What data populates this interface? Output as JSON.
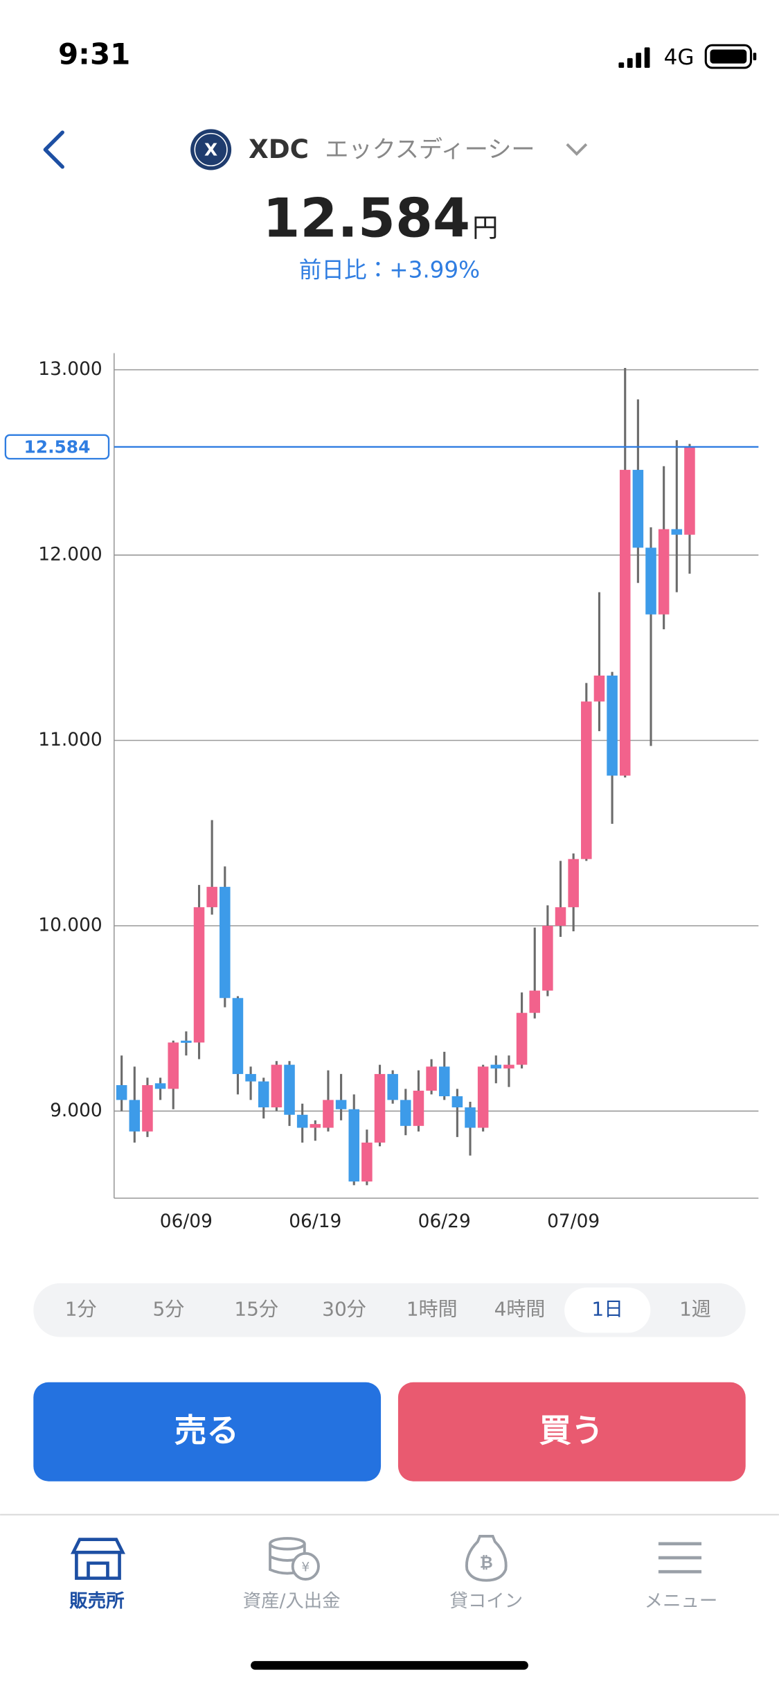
{
  "status_bar": {
    "time": "9:31",
    "network": "4G"
  },
  "header": {
    "symbol": "XDC",
    "name": "エックスディーシー",
    "price": "12.584",
    "unit": "円",
    "change": "前日比：+3.99%"
  },
  "chart_data": {
    "type": "candlestick",
    "x": [
      "06/04",
      "06/05",
      "06/06",
      "06/07",
      "06/08",
      "06/09",
      "06/10",
      "06/11",
      "06/12",
      "06/13",
      "06/14",
      "06/15",
      "06/16",
      "06/17",
      "06/18",
      "06/19",
      "06/20",
      "06/21",
      "06/22",
      "06/23",
      "06/24",
      "06/25",
      "06/26",
      "06/27",
      "06/28",
      "06/29",
      "06/30",
      "07/01",
      "07/02",
      "07/03",
      "07/04",
      "07/05",
      "07/06",
      "07/07",
      "07/08",
      "07/09",
      "07/10",
      "07/11",
      "07/12",
      "07/13",
      "07/14",
      "07/15",
      "07/16",
      "07/17",
      "07/18"
    ],
    "open": [
      9.14,
      9.06,
      8.89,
      9.15,
      9.12,
      9.38,
      9.37,
      10.1,
      10.21,
      9.61,
      9.2,
      9.16,
      9.02,
      9.25,
      8.98,
      8.91,
      8.91,
      9.06,
      9.01,
      8.62,
      8.83,
      9.2,
      9.06,
      8.92,
      9.11,
      9.24,
      9.08,
      9.02,
      8.91,
      9.25,
      9.23,
      9.25,
      9.53,
      9.65,
      10.0,
      10.1,
      10.36,
      11.21,
      11.35,
      10.81,
      12.46,
      12.04,
      11.68,
      12.14,
      12.11
    ],
    "high": [
      9.3,
      9.24,
      9.18,
      9.18,
      9.38,
      9.43,
      10.22,
      10.57,
      10.32,
      9.62,
      9.24,
      9.18,
      9.27,
      9.27,
      9.04,
      8.95,
      9.22,
      9.2,
      9.09,
      8.9,
      9.25,
      9.22,
      9.12,
      9.22,
      9.28,
      9.32,
      9.12,
      9.05,
      9.25,
      9.3,
      9.3,
      9.64,
      9.99,
      10.11,
      10.35,
      10.39,
      11.31,
      11.8,
      11.37,
      13.01,
      12.84,
      12.15,
      12.48,
      12.62,
      12.6
    ],
    "low": [
      9.0,
      8.83,
      8.86,
      9.06,
      9.01,
      9.3,
      9.28,
      10.06,
      9.56,
      9.09,
      9.06,
      8.96,
      9.0,
      8.92,
      8.83,
      8.84,
      8.89,
      8.95,
      8.6,
      8.6,
      8.81,
      9.04,
      8.87,
      8.89,
      9.09,
      9.06,
      8.86,
      8.76,
      8.89,
      9.15,
      9.13,
      9.23,
      9.5,
      9.62,
      9.94,
      9.97,
      10.35,
      11.05,
      10.55,
      10.8,
      11.85,
      10.97,
      11.6,
      11.8,
      11.9
    ],
    "close": [
      9.06,
      8.89,
      9.14,
      9.12,
      9.37,
      9.37,
      10.1,
      10.21,
      9.61,
      9.2,
      9.16,
      9.02,
      9.25,
      8.98,
      8.91,
      8.93,
      9.06,
      9.01,
      8.62,
      8.83,
      9.2,
      9.06,
      8.92,
      9.11,
      9.24,
      9.08,
      9.02,
      8.91,
      9.24,
      9.23,
      9.25,
      9.53,
      9.65,
      10.0,
      10.1,
      10.36,
      11.21,
      11.35,
      10.81,
      12.46,
      12.04,
      11.68,
      12.14,
      12.11,
      12.58
    ],
    "up_color": "#f2628c",
    "down_color": "#3d9be9",
    "ylim": [
      8.53,
      13.09
    ],
    "yticks": [
      {
        "value": 9,
        "label": "9.000"
      },
      {
        "value": 10,
        "label": "10.000"
      },
      {
        "value": 11,
        "label": "11.000"
      },
      {
        "value": 12,
        "label": "12.000"
      },
      {
        "value": 13,
        "label": "13.000"
      }
    ],
    "xticks": [
      "06/09",
      "06/19",
      "06/29",
      "07/09"
    ],
    "current": {
      "value": 12.584,
      "label": "12.584"
    },
    "current_color": "#2f7de1",
    "grid": true
  },
  "timeframes": {
    "items": [
      "1分",
      "5分",
      "15分",
      "30分",
      "1時間",
      "4時間",
      "1日",
      "1週"
    ],
    "selected": 6
  },
  "actions": {
    "sell": "売る",
    "buy": "買う"
  },
  "nav": {
    "items": [
      {
        "label": "販売所",
        "active": true
      },
      {
        "label": "資産/入出金",
        "active": false
      },
      {
        "label": "貸コイン",
        "active": false
      },
      {
        "label": "メニュー",
        "active": false
      }
    ]
  }
}
